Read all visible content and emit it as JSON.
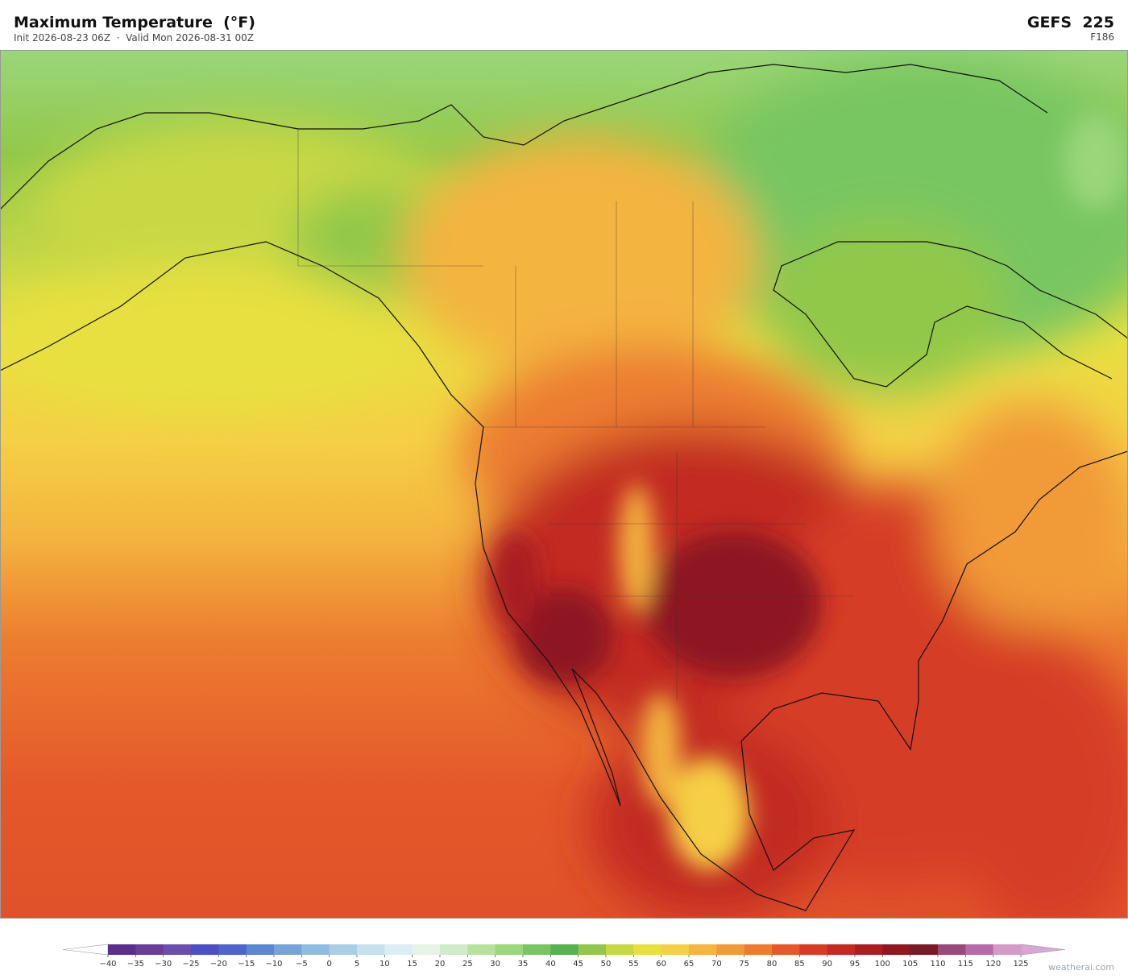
{
  "header": {
    "title": "Maximum Temperature  (°F)",
    "subtitle": "Init 2026-08-23 06Z  ·  Valid Mon 2026-08-31 00Z",
    "model": "GEFS  225",
    "forecast_hour": "F186"
  },
  "colorbar": {
    "ticks": [
      {
        "value": -40,
        "label": "−40"
      },
      {
        "value": -35,
        "label": "−35"
      },
      {
        "value": -30,
        "label": "−30"
      },
      {
        "value": -25,
        "label": "−25"
      },
      {
        "value": -20,
        "label": "−20"
      },
      {
        "value": -15,
        "label": "−15"
      },
      {
        "value": -10,
        "label": "−10"
      },
      {
        "value": -5,
        "label": "−5"
      },
      0,
      5,
      10,
      15,
      20,
      25,
      30,
      35,
      40,
      45,
      50,
      55,
      60,
      65,
      70,
      75,
      80,
      85,
      90,
      95,
      100,
      105,
      110,
      115,
      120,
      125
    ],
    "colors": [
      "#5b2d8e",
      "#6a3d9a",
      "#6a4fb0",
      "#4b4fc4",
      "#4e63cc",
      "#5b86d4",
      "#76a3d8",
      "#8fbce0",
      "#a9cfe8",
      "#c4e2f0",
      "#dceef4",
      "#e6f3e6",
      "#d0ebc8",
      "#b8e29c",
      "#9ad67a",
      "#78c662",
      "#55b24e",
      "#92c84a",
      "#c8d845",
      "#e8e040",
      "#f5cf45",
      "#f4b43f",
      "#f19a38",
      "#ec7d30",
      "#e4582a",
      "#d63c25",
      "#c22a22",
      "#a91e20",
      "#8e1820",
      "#7a1a28",
      "#9a4a78",
      "#b86aa8",
      "#d49ac8"
    ]
  },
  "footer": {
    "credit": "weatherai.com"
  }
}
